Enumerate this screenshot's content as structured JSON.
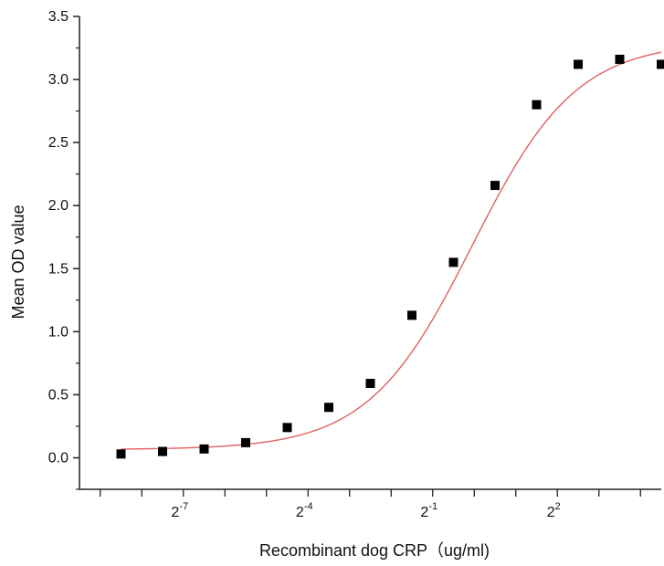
{
  "chart_data": {
    "type": "scatter",
    "title": "",
    "xlabel": "Recombinant dog  CRP（ug/ml)",
    "ylabel": "Mean OD value",
    "x_scale": "log2",
    "xlim_log2": [
      -9.5,
      4.5
    ],
    "ylim": [
      -0.25,
      3.5
    ],
    "y_ticks": [
      0.0,
      0.5,
      1.0,
      1.5,
      2.0,
      2.5,
      3.0,
      3.5
    ],
    "y_tick_labels": [
      "0.0",
      "0.5",
      "1.0",
      "1.5",
      "2.0",
      "2.5",
      "3.0",
      "3.5"
    ],
    "x_major_ticks_log2": [
      -7,
      -4,
      -1,
      2
    ],
    "x_tick_labels": [
      {
        "base": "2",
        "exp": "-7"
      },
      {
        "base": "2",
        "exp": "-4"
      },
      {
        "base": "2",
        "exp": "-1"
      },
      {
        "base": "2",
        "exp": "2"
      }
    ],
    "x_minor_ticks_log2": [
      -9,
      -8,
      -6,
      -5,
      -3,
      -2,
      0,
      1,
      3,
      4
    ],
    "grid": false,
    "series": [
      {
        "marker": "square",
        "color": "#000000",
        "x_log2": [
          -8.5,
          -7.5,
          -6.5,
          -5.5,
          -4.5,
          -3.5,
          -2.5,
          -1.5,
          -0.5,
          0.5,
          1.5,
          2.5,
          3.5,
          4.5
        ],
        "values": [
          0.03,
          0.05,
          0.07,
          0.12,
          0.24,
          0.4,
          0.59,
          1.13,
          1.55,
          2.16,
          2.8,
          3.12,
          3.16,
          3.12
        ]
      }
    ],
    "fit_curve": {
      "type": "4PL",
      "color": "#e06060",
      "bottom": 0.065,
      "top": 3.3,
      "ec50_log2": -0.05,
      "hill_slope_log2": 1.15
    }
  }
}
